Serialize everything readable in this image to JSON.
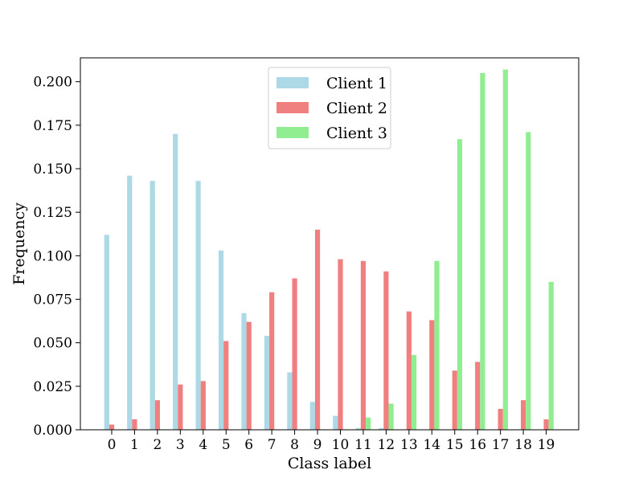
{
  "chart_data": {
    "type": "bar",
    "title": "",
    "xlabel": "Class label",
    "ylabel": "Frequency",
    "ylim": [
      0,
      0.2137
    ],
    "yticks": [
      0.0,
      0.025,
      0.05,
      0.075,
      0.1,
      0.125,
      0.15,
      0.175,
      0.2
    ],
    "ytick_labels": [
      "0.000",
      "0.025",
      "0.050",
      "0.075",
      "0.100",
      "0.125",
      "0.150",
      "0.175",
      "0.200"
    ],
    "categories": [
      "0",
      "1",
      "2",
      "3",
      "4",
      "5",
      "6",
      "7",
      "8",
      "9",
      "10",
      "11",
      "12",
      "13",
      "14",
      "15",
      "16",
      "17",
      "18",
      "19"
    ],
    "legend_position": "upper-center",
    "grid": false,
    "series": [
      {
        "name": "Client 1",
        "color": "#add8e6",
        "values": [
          0.112,
          0.146,
          0.143,
          0.17,
          0.143,
          0.103,
          0.067,
          0.054,
          0.033,
          0.016,
          0.008,
          0.001,
          0.001,
          0.0,
          0.0,
          0.0,
          0.0,
          0.0,
          0.0,
          0.0
        ]
      },
      {
        "name": "Client 2",
        "color": "#f08080",
        "values": [
          0.003,
          0.006,
          0.017,
          0.026,
          0.028,
          0.051,
          0.062,
          0.079,
          0.087,
          0.115,
          0.098,
          0.097,
          0.091,
          0.068,
          0.063,
          0.034,
          0.039,
          0.012,
          0.017,
          0.006
        ]
      },
      {
        "name": "Client 3",
        "color": "#90ee90",
        "values": [
          0.0,
          0.0,
          0.0,
          0.0,
          0.0,
          0.0,
          0.0,
          0.0,
          0.0,
          0.0,
          0.0,
          0.007,
          0.015,
          0.043,
          0.097,
          0.167,
          0.205,
          0.207,
          0.171,
          0.085
        ]
      }
    ]
  }
}
